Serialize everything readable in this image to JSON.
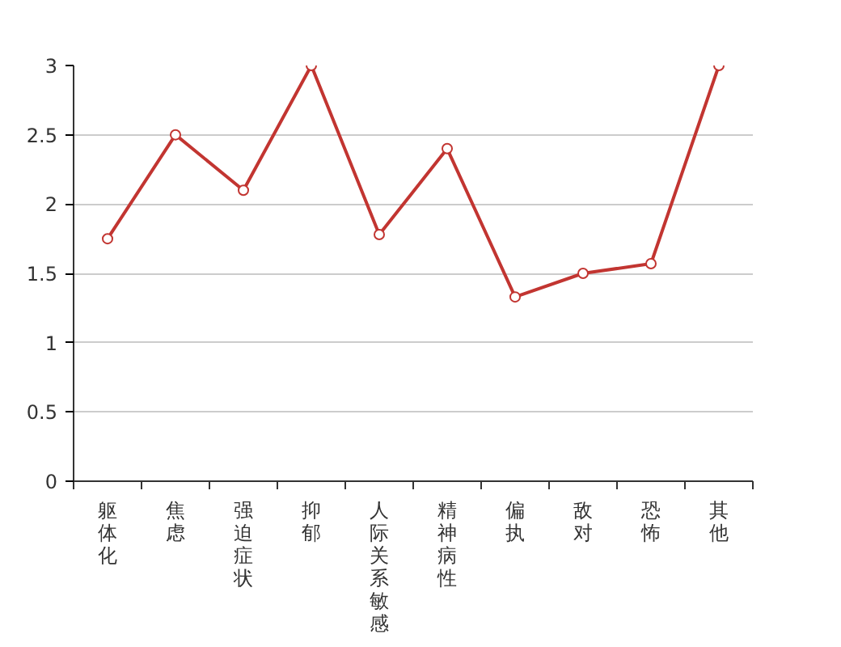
{
  "chart_data": {
    "type": "line",
    "categories": [
      "躯体化",
      "焦虑",
      "强迫症状",
      "抑郁",
      "人际关系敏感",
      "精神病性",
      "偏执",
      "敌对",
      "恐怖",
      "其他"
    ],
    "series": [
      {
        "color": "#c23531",
        "values": [
          1.75,
          2.5,
          2.1,
          3,
          1.78,
          2.4,
          1.33,
          1.5,
          1.57,
          3
        ]
      }
    ],
    "ylim": [
      0,
      3
    ],
    "yticks": [
      0,
      0.5,
      1,
      1.5,
      2,
      2.5,
      3
    ],
    "grid": "y",
    "marker": "circle",
    "line_style": "solid"
  }
}
